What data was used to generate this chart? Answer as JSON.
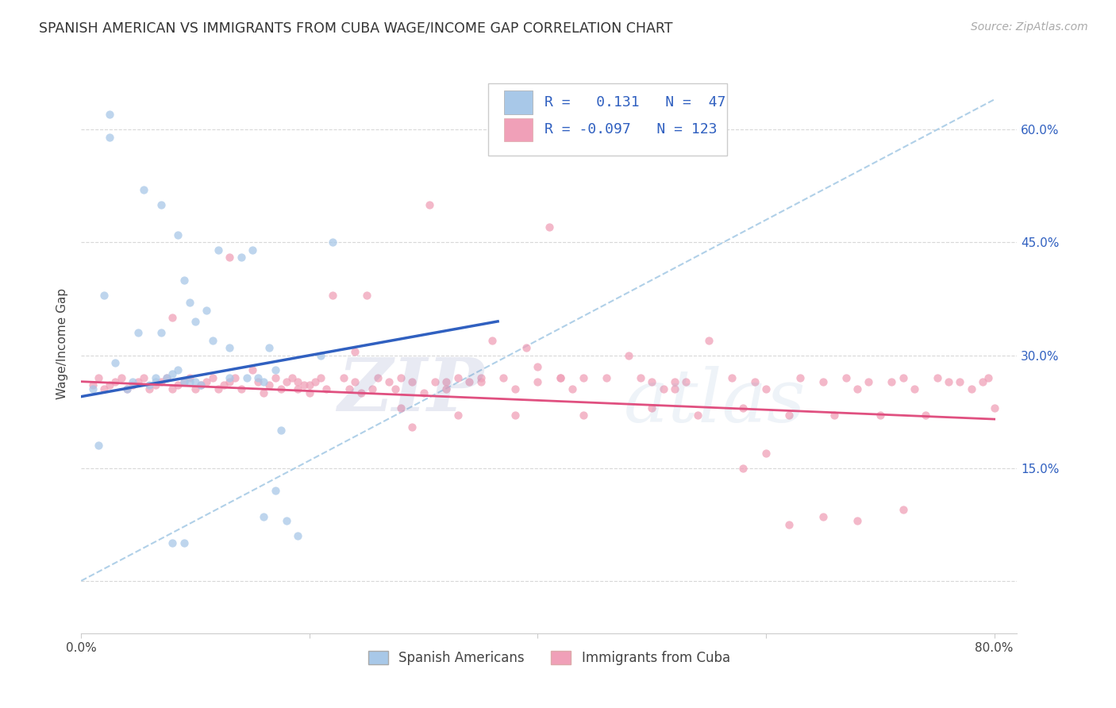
{
  "title": "SPANISH AMERICAN VS IMMIGRANTS FROM CUBA WAGE/INCOME GAP CORRELATION CHART",
  "source": "Source: ZipAtlas.com",
  "ylabel": "Wage/Income Gap",
  "r_spanish": 0.131,
  "n_spanish": 47,
  "r_cuba": -0.097,
  "n_cuba": 123,
  "xlim": [
    0.0,
    0.82
  ],
  "ylim": [
    -0.07,
    0.7
  ],
  "yticks": [
    0.0,
    0.15,
    0.3,
    0.45,
    0.6
  ],
  "ytick_labels": [
    "",
    "15.0%",
    "30.0%",
    "45.0%",
    "60.0%"
  ],
  "xticks": [
    0.0,
    0.2,
    0.4,
    0.6,
    0.8
  ],
  "xtick_labels": [
    "0.0%",
    "",
    "",
    "",
    "80.0%"
  ],
  "color_spanish": "#a8c8e8",
  "color_cuba": "#f0a0b8",
  "line_color_spanish": "#3060c0",
  "line_color_cuba": "#e05080",
  "dashed_line_color": "#b0d0e8",
  "background_color": "#ffffff",
  "scatter_alpha": 0.75,
  "scatter_size": 55,
  "legend_r_color": "#3060c0",
  "blue_line_x": [
    0.0,
    0.365
  ],
  "blue_line_y": [
    0.245,
    0.345
  ],
  "pink_line_x": [
    0.0,
    0.8
  ],
  "pink_line_y": [
    0.265,
    0.215
  ],
  "dash_line_x": [
    0.0,
    0.8
  ],
  "dash_line_y": [
    0.0,
    0.64
  ],
  "sp_x": [
    0.01,
    0.025,
    0.025,
    0.04,
    0.045,
    0.055,
    0.06,
    0.065,
    0.065,
    0.07,
    0.075,
    0.08,
    0.085,
    0.085,
    0.09,
    0.09,
    0.095,
    0.095,
    0.1,
    0.1,
    0.105,
    0.11,
    0.115,
    0.12,
    0.13,
    0.13,
    0.14,
    0.145,
    0.15,
    0.155,
    0.16,
    0.165,
    0.17,
    0.175,
    0.18,
    0.19,
    0.02,
    0.03,
    0.05,
    0.07,
    0.08,
    0.09,
    0.16,
    0.17,
    0.21,
    0.22,
    0.015
  ],
  "sp_y": [
    0.255,
    0.62,
    0.59,
    0.255,
    0.265,
    0.52,
    0.26,
    0.27,
    0.265,
    0.5,
    0.27,
    0.275,
    0.28,
    0.46,
    0.4,
    0.265,
    0.37,
    0.265,
    0.345,
    0.265,
    0.26,
    0.36,
    0.32,
    0.44,
    0.31,
    0.27,
    0.43,
    0.27,
    0.44,
    0.27,
    0.265,
    0.31,
    0.28,
    0.2,
    0.08,
    0.06,
    0.38,
    0.29,
    0.33,
    0.33,
    0.05,
    0.05,
    0.085,
    0.12,
    0.3,
    0.45,
    0.18
  ],
  "cu_x": [
    0.01,
    0.015,
    0.02,
    0.025,
    0.03,
    0.035,
    0.04,
    0.045,
    0.05,
    0.055,
    0.06,
    0.065,
    0.07,
    0.075,
    0.08,
    0.085,
    0.09,
    0.095,
    0.1,
    0.105,
    0.11,
    0.115,
    0.12,
    0.125,
    0.13,
    0.135,
    0.14,
    0.15,
    0.155,
    0.16,
    0.165,
    0.17,
    0.175,
    0.18,
    0.185,
    0.19,
    0.195,
    0.2,
    0.205,
    0.21,
    0.215,
    0.22,
    0.23,
    0.235,
    0.24,
    0.245,
    0.25,
    0.255,
    0.26,
    0.27,
    0.275,
    0.28,
    0.29,
    0.3,
    0.305,
    0.31,
    0.32,
    0.33,
    0.34,
    0.35,
    0.36,
    0.37,
    0.38,
    0.39,
    0.4,
    0.41,
    0.42,
    0.43,
    0.44,
    0.46,
    0.48,
    0.49,
    0.5,
    0.51,
    0.52,
    0.53,
    0.55,
    0.57,
    0.58,
    0.59,
    0.6,
    0.62,
    0.63,
    0.65,
    0.66,
    0.67,
    0.68,
    0.69,
    0.7,
    0.71,
    0.72,
    0.73,
    0.74,
    0.75,
    0.76,
    0.77,
    0.78,
    0.79,
    0.795,
    0.8,
    0.13,
    0.08,
    0.19,
    0.2,
    0.24,
    0.28,
    0.29,
    0.32,
    0.33,
    0.35,
    0.38,
    0.4,
    0.42,
    0.44,
    0.5,
    0.52,
    0.54,
    0.58,
    0.6,
    0.62,
    0.65,
    0.68,
    0.72
  ],
  "cu_y": [
    0.26,
    0.27,
    0.255,
    0.26,
    0.265,
    0.27,
    0.255,
    0.26,
    0.265,
    0.27,
    0.255,
    0.26,
    0.265,
    0.27,
    0.255,
    0.26,
    0.265,
    0.27,
    0.255,
    0.26,
    0.265,
    0.27,
    0.255,
    0.26,
    0.265,
    0.27,
    0.255,
    0.28,
    0.265,
    0.25,
    0.26,
    0.27,
    0.255,
    0.265,
    0.27,
    0.255,
    0.26,
    0.25,
    0.265,
    0.27,
    0.255,
    0.38,
    0.27,
    0.255,
    0.265,
    0.25,
    0.38,
    0.255,
    0.27,
    0.265,
    0.255,
    0.27,
    0.265,
    0.25,
    0.5,
    0.265,
    0.255,
    0.27,
    0.265,
    0.265,
    0.32,
    0.27,
    0.255,
    0.31,
    0.265,
    0.47,
    0.27,
    0.255,
    0.27,
    0.27,
    0.3,
    0.27,
    0.265,
    0.255,
    0.255,
    0.265,
    0.32,
    0.27,
    0.23,
    0.265,
    0.255,
    0.22,
    0.27,
    0.265,
    0.22,
    0.27,
    0.255,
    0.265,
    0.22,
    0.265,
    0.27,
    0.255,
    0.22,
    0.27,
    0.265,
    0.265,
    0.255,
    0.265,
    0.27,
    0.23,
    0.43,
    0.35,
    0.265,
    0.26,
    0.305,
    0.23,
    0.205,
    0.265,
    0.22,
    0.27,
    0.22,
    0.285,
    0.27,
    0.22,
    0.23,
    0.265,
    0.22,
    0.15,
    0.17,
    0.075,
    0.085,
    0.08,
    0.095
  ]
}
